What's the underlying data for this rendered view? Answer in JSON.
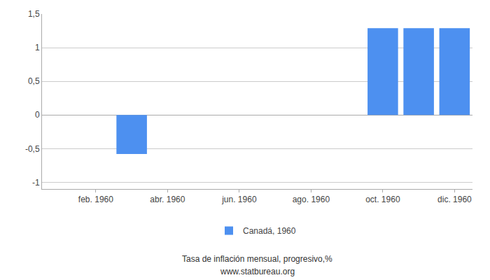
{
  "chart_data": {
    "type": "bar",
    "x": [
      3,
      10,
      11,
      12
    ],
    "series": [
      {
        "name": "Canadá, 1960",
        "color": "#4d90f0",
        "values": [
          -0.58,
          1.29,
          1.29,
          1.29
        ]
      }
    ],
    "xlim": [
      0.5,
      12.5
    ],
    "xticks": [
      {
        "value": 2,
        "label": "feb. 1960"
      },
      {
        "value": 4,
        "label": "abr. 1960"
      },
      {
        "value": 6,
        "label": "jun. 1960"
      },
      {
        "value": 8,
        "label": "ago. 1960"
      },
      {
        "value": 10,
        "label": "oct. 1960"
      },
      {
        "value": 12,
        "label": "dic. 1960"
      }
    ],
    "ylim": [
      -1.1,
      1.5
    ],
    "yticks": [
      -1,
      {
        "value": -0.5,
        "label": "-0,5"
      },
      0,
      {
        "value": 0.5,
        "label": "0,5"
      },
      1,
      {
        "value": 1.5,
        "label": "1,5"
      }
    ],
    "grid": true,
    "legend": "bottom",
    "annotations": [
      "Tasa de inflación mensual, progresivo,%",
      "www.statbureau.org"
    ]
  }
}
